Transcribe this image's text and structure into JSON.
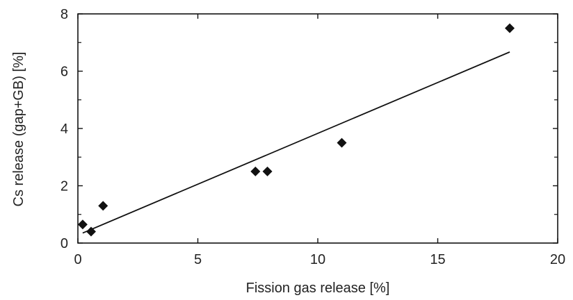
{
  "chart_data": {
    "type": "scatter",
    "title": "",
    "xlabel": "Fission gas release [%]",
    "ylabel": "Cs release (gap+GB) [%]",
    "xlim": [
      0,
      20
    ],
    "ylim": [
      0,
      8
    ],
    "x_ticks": [
      0,
      5,
      10,
      15,
      20
    ],
    "y_ticks": [
      0,
      2,
      4,
      6,
      8
    ],
    "x_tick_labels": [
      "0",
      "5",
      "10",
      "15",
      "20"
    ],
    "y_tick_labels": [
      "0",
      "2",
      "4",
      "6",
      "8"
    ],
    "grid": false,
    "legend": "none",
    "marker": "diamond",
    "marker_color": "#111111",
    "points": [
      {
        "x": 0.2,
        "y": 0.65
      },
      {
        "x": 0.55,
        "y": 0.4
      },
      {
        "x": 1.05,
        "y": 1.3
      },
      {
        "x": 7.4,
        "y": 2.5
      },
      {
        "x": 7.9,
        "y": 2.5
      },
      {
        "x": 11.0,
        "y": 3.5
      },
      {
        "x": 18.0,
        "y": 7.5
      }
    ],
    "fit_line": {
      "x": [
        0.2,
        18.0
      ],
      "y": [
        0.35,
        6.67
      ]
    }
  }
}
